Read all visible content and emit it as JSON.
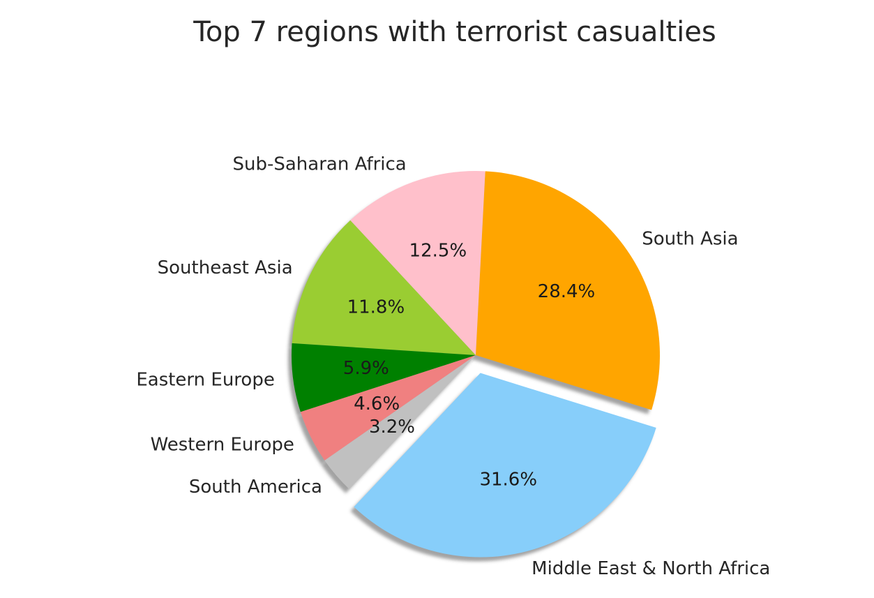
{
  "chart_data": {
    "type": "pie",
    "title": "Top 7 regions with terrorist casualties",
    "slices": [
      {
        "label": "South Asia",
        "value": 28.4,
        "pct_label": "28.4%",
        "color": "#ffa500"
      },
      {
        "label": "Sub-Saharan Africa",
        "value": 12.5,
        "pct_label": "12.5%",
        "color": "#ffc0cb"
      },
      {
        "label": "Southeast Asia",
        "value": 11.8,
        "pct_label": "11.8%",
        "color": "#9acd32"
      },
      {
        "label": "Eastern Europe",
        "value": 5.9,
        "pct_label": "5.9%",
        "color": "#008000"
      },
      {
        "label": "Western Europe",
        "value": 4.6,
        "pct_label": "4.6%",
        "color": "#f08080"
      },
      {
        "label": "South America",
        "value": 3.2,
        "pct_label": "3.2%",
        "color": "#c0c0c0"
      },
      {
        "label": "Middle East & North Africa",
        "value": 31.6,
        "pct_label": "31.6%",
        "color": "#87cefa",
        "exploded": true
      }
    ],
    "shadow": true,
    "legend": "none"
  }
}
